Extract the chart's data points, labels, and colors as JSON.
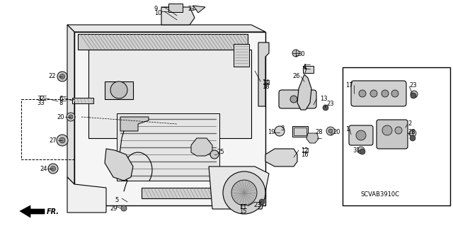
{
  "bg_color": "#ffffff",
  "line_color": "#000000",
  "fig_width": 6.4,
  "fig_height": 3.19,
  "dpi": 100,
  "part_code": "SCVAB3910C"
}
